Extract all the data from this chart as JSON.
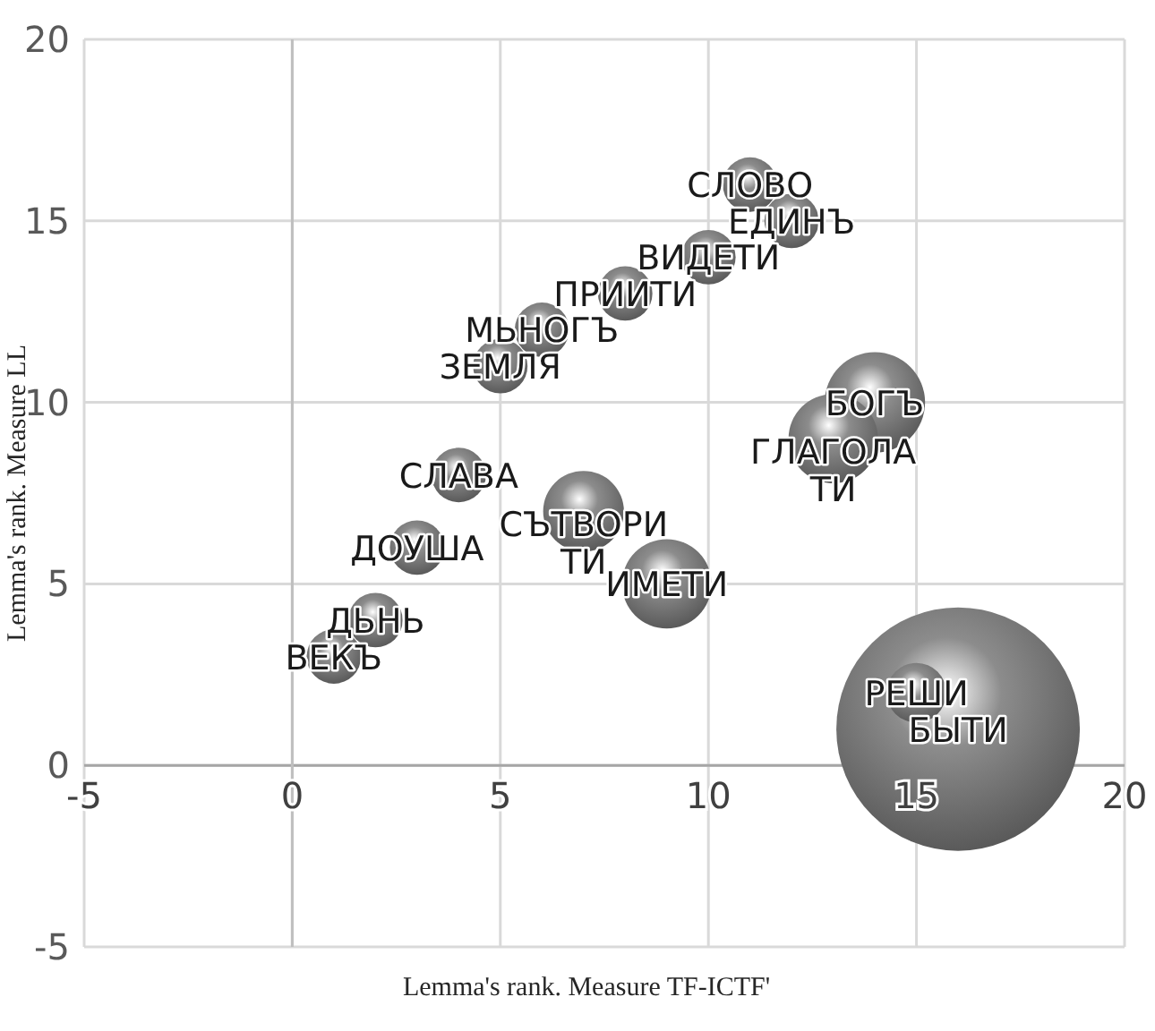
{
  "chart_data": {
    "type": "bubble",
    "xlabel": "Lemma's rank. Measure TF-ICTF'",
    "ylabel": "Lemma's rank. Measure LL",
    "xlim": [
      -5,
      20
    ],
    "ylim": [
      -5,
      20
    ],
    "xticks": [
      -5,
      0,
      5,
      10,
      15,
      20
    ],
    "yticks": [
      -5,
      0,
      5,
      10,
      15,
      20
    ],
    "grid": true,
    "series": [
      {
        "color": "#8c8c8c",
        "x": [
          1,
          2,
          3,
          4,
          5,
          6,
          8,
          10,
          11,
          12,
          7,
          9,
          13,
          14,
          15,
          16
        ],
        "values": [
          3,
          4,
          6,
          8,
          11,
          12,
          13,
          14,
          16,
          15,
          7,
          5,
          9,
          10,
          2,
          1
        ],
        "sizes": [
          0.05,
          0.05,
          0.05,
          0.05,
          0.05,
          0.05,
          0.05,
          0.05,
          0.05,
          0.05,
          0.11,
          0.135,
          0.135,
          0.17,
          0.06,
          1
        ],
        "value_labels": [
          "ВЕКЪ",
          "ДЬНЬ",
          "ДОУША",
          "СЛАВА",
          "ЗЕМЛЯ",
          "МЬНОГЪ",
          "ПРИИТИ",
          "ВИДЕТИ",
          "СЛОВО",
          "ЕДИНЪ",
          "СЪТВОРИТИ",
          "ИМЕТИ",
          "ГЛАГОЛАТИ",
          "БОГЪ",
          "РЕШИ",
          "БЫТИ"
        ]
      }
    ]
  }
}
